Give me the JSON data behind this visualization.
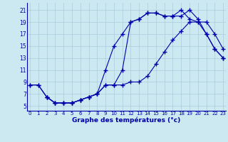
{
  "xlabel": "Graphe des températures (°c)",
  "bg_color": "#cce8f0",
  "line_color": "#0000aa",
  "grid_color": "#aaccdd",
  "x_ticks": [
    0,
    1,
    2,
    3,
    4,
    5,
    6,
    7,
    8,
    9,
    10,
    11,
    12,
    13,
    14,
    15,
    16,
    17,
    18,
    19,
    20,
    21,
    22,
    23
  ],
  "y_ticks": [
    5,
    7,
    9,
    11,
    13,
    15,
    17,
    19,
    21
  ],
  "xlim": [
    -0.3,
    23.3
  ],
  "ylim": [
    4.2,
    22.2
  ],
  "series1_x": [
    0,
    1,
    2,
    3,
    4,
    5,
    6,
    7,
    8,
    9,
    10,
    11,
    12,
    13,
    14,
    15,
    16,
    17,
    18,
    19,
    20,
    21,
    22,
    23
  ],
  "series1_y": [
    8.5,
    8.5,
    6.5,
    5.5,
    5.5,
    5.5,
    6.0,
    6.5,
    7.0,
    8.5,
    8.5,
    11.0,
    19.0,
    19.5,
    20.5,
    20.5,
    20.0,
    20.0,
    20.0,
    21.0,
    19.5,
    17.0,
    14.5,
    13.0
  ],
  "series2_x": [
    0,
    1,
    2,
    3,
    4,
    5,
    6,
    7,
    8,
    9,
    10,
    11,
    12,
    13,
    14,
    15,
    16,
    17,
    18,
    19,
    20,
    21,
    22,
    23
  ],
  "series2_y": [
    8.5,
    8.5,
    6.5,
    5.5,
    5.5,
    5.5,
    6.0,
    6.5,
    7.0,
    11.0,
    15.0,
    17.0,
    19.0,
    19.5,
    20.5,
    20.5,
    20.0,
    20.0,
    21.0,
    19.5,
    19.0,
    17.0,
    14.5,
    13.0
  ],
  "series3_x": [
    2,
    3,
    4,
    5,
    6,
    7,
    8,
    9,
    10,
    11,
    12,
    13,
    14,
    15,
    16,
    17,
    18,
    19,
    20,
    21,
    22,
    23
  ],
  "series3_y": [
    6.5,
    5.5,
    5.5,
    5.5,
    6.0,
    6.5,
    7.0,
    8.5,
    8.5,
    8.5,
    9.0,
    9.0,
    10.0,
    12.0,
    14.0,
    16.0,
    17.5,
    19.0,
    19.0,
    19.0,
    17.0,
    14.5
  ]
}
